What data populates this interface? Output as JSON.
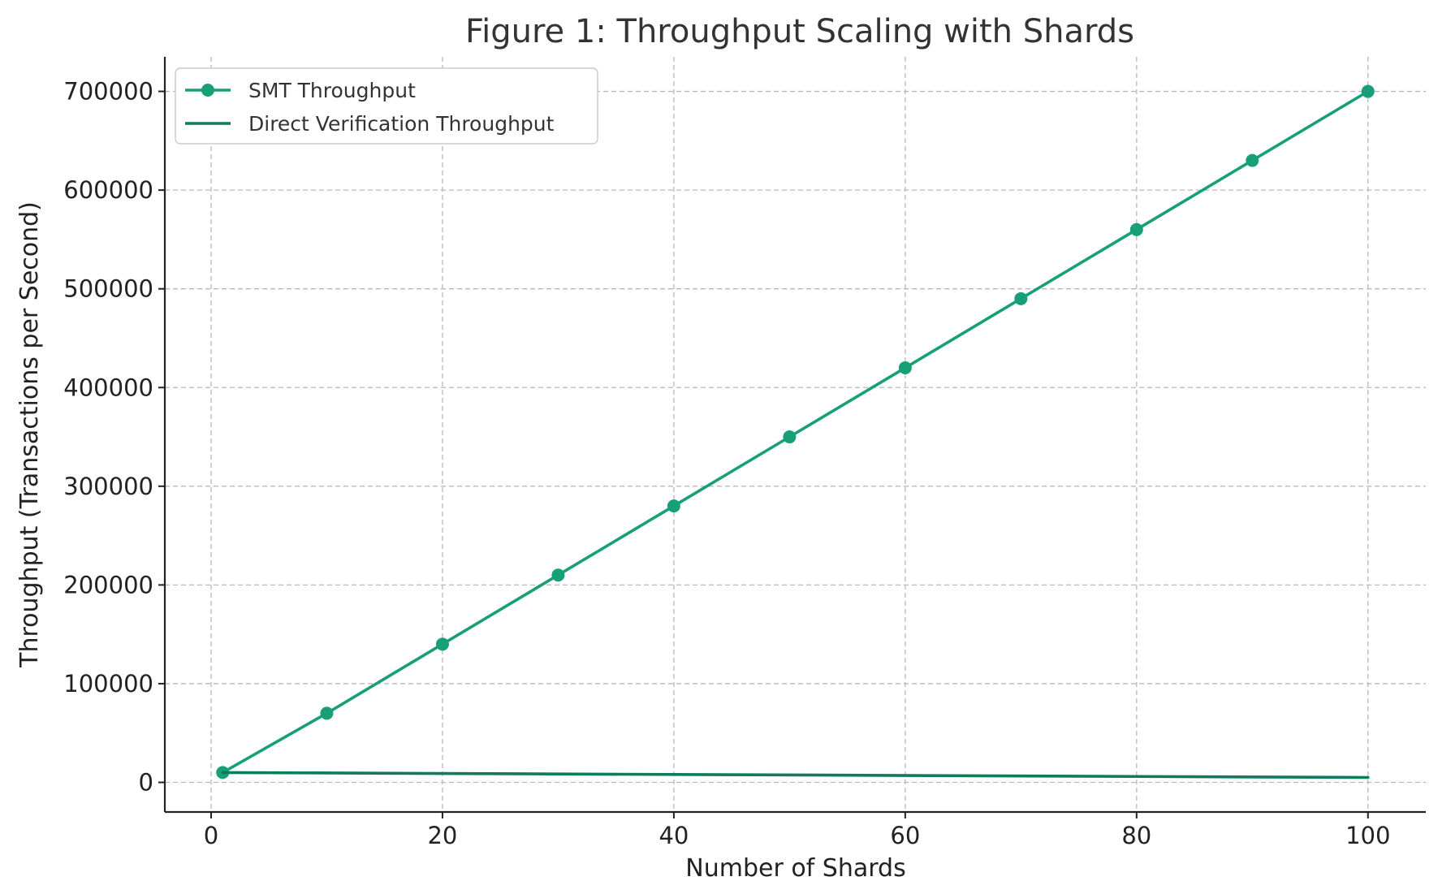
{
  "chart_data": {
    "type": "line",
    "title": "Figure 1: Throughput Scaling with Shards",
    "xlabel": "Number of Shards",
    "ylabel": "Throughput (Transactions per Second)",
    "xlim": [
      -4,
      105
    ],
    "ylim": [
      -30000,
      735000
    ],
    "xticks": [
      0,
      20,
      40,
      60,
      80,
      100
    ],
    "yticks": [
      0,
      100000,
      200000,
      300000,
      400000,
      500000,
      600000,
      700000
    ],
    "grid": true,
    "legend_position": "top-left",
    "series": [
      {
        "name": "SMT Throughput",
        "color": "#17a078",
        "marker": "circle",
        "x": [
          1,
          10,
          20,
          30,
          40,
          50,
          60,
          70,
          80,
          90,
          100
        ],
        "y": [
          10000,
          70000,
          140000,
          210000,
          280000,
          350000,
          420000,
          490000,
          560000,
          630000,
          700000
        ]
      },
      {
        "name": "Direct Verification Throughput",
        "color": "#0f7a5c",
        "marker": "none",
        "x": [
          1,
          100
        ],
        "y": [
          10000,
          5000
        ]
      }
    ]
  }
}
